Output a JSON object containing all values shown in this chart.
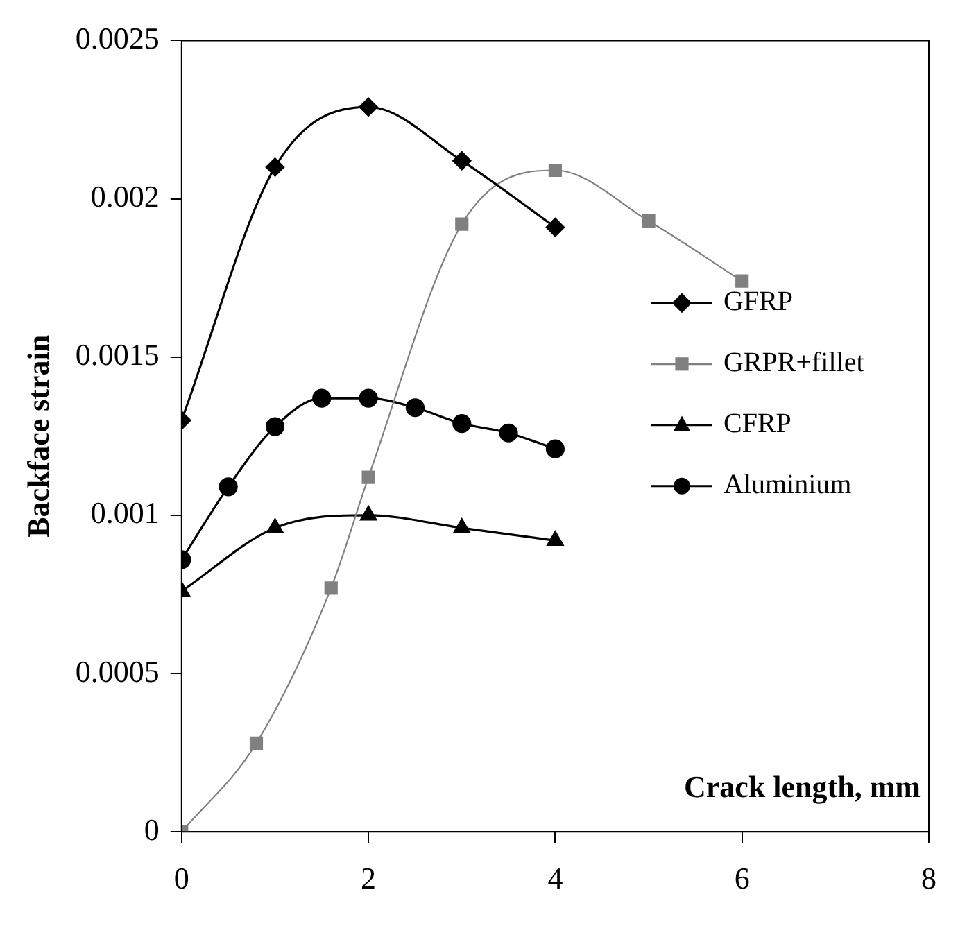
{
  "chart_data": {
    "type": "line",
    "xlabel": "Crack length, mm",
    "ylabel": "Backface strain",
    "xlim": [
      0,
      8
    ],
    "xticks": [
      0,
      2,
      4,
      6,
      8
    ],
    "ylim": [
      0,
      0.0025
    ],
    "yticks": [
      0,
      0.0005,
      0.001,
      0.0015,
      0.002,
      0.0025
    ],
    "grid": false,
    "legend": "right",
    "series": [
      {
        "name": "GFRP",
        "color": "#000000",
        "marker": "diamond",
        "x": [
          0,
          1,
          2,
          3,
          4
        ],
        "values": [
          0.0013,
          0.0021,
          0.00229,
          0.00212,
          0.00191
        ]
      },
      {
        "name": "GRPR+fillet",
        "color": "#808080",
        "marker": "square",
        "x": [
          0,
          0.8,
          1.6,
          2,
          3,
          4,
          5,
          6
        ],
        "values": [
          0,
          0.00028,
          0.00077,
          0.00112,
          0.00192,
          0.00209,
          0.00193,
          0.00174
        ]
      },
      {
        "name": "CFRP",
        "color": "#000000",
        "marker": "triangle",
        "x": [
          0,
          1,
          2,
          3,
          4
        ],
        "values": [
          0.00076,
          0.00096,
          0.001,
          0.00096,
          0.00092
        ]
      },
      {
        "name": "Aluminium",
        "color": "#000000",
        "marker": "circle",
        "x": [
          0,
          0.5,
          1,
          1.5,
          2,
          2.5,
          3,
          3.5,
          4
        ],
        "values": [
          0.00086,
          0.00109,
          0.00128,
          0.00137,
          0.00137,
          0.00134,
          0.00129,
          0.00126,
          0.00121
        ]
      }
    ]
  }
}
